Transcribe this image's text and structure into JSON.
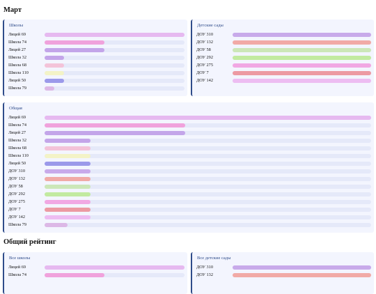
{
  "sections": {
    "march": "Март",
    "overall": "Общий рейтинг"
  },
  "chart_data": [
    {
      "type": "bar",
      "title": "Школы",
      "categories": [
        "Лицей 69",
        "Школа 74",
        "Лицей 27",
        "Школа 32",
        "Школа 68",
        "Школа 110",
        "Лицей 50",
        "Школа 79"
      ],
      "values": [
        100,
        43,
        43,
        14,
        14,
        14,
        14,
        7
      ],
      "colors": [
        "#e6b9f0",
        "#f0a2dc",
        "#c3a5e9",
        "#c3a5e9",
        "#f3c3d9",
        "#f3f3c7",
        "#9b99ea",
        "#dcb8e6"
      ],
      "xlim": [
        0,
        100
      ]
    },
    {
      "type": "bar",
      "title": "Детские сады",
      "categories": [
        "ДОУ 310",
        "ДОУ 132",
        "ДОУ 58",
        "ДОУ 292",
        "ДОУ 275",
        "ДОУ 7",
        "ДОУ 142"
      ],
      "values": [
        100,
        100,
        100,
        100,
        100,
        100,
        100
      ],
      "colors": [
        "#c8aaea",
        "#f1aaa6",
        "#cce7b8",
        "#c2eaa0",
        "#f1a8e3",
        "#ec9aa3",
        "#edbdf2"
      ],
      "xlim": [
        0,
        100
      ]
    },
    {
      "type": "bar",
      "title": "Общая",
      "categories": [
        "Лицей 69",
        "Школа 74",
        "Лицей 27",
        "Школа 32",
        "Школа 68",
        "Школа 110",
        "Лицей 50",
        "ДОУ 310",
        "ДОУ 132",
        "ДОУ 58",
        "ДОУ 292",
        "ДОУ 275",
        "ДОУ 7",
        "ДОУ 142",
        "Школа 79"
      ],
      "values": [
        100,
        43,
        43,
        14,
        14,
        14,
        14,
        14,
        14,
        14,
        14,
        14,
        14,
        14,
        7
      ],
      "colors": [
        "#e6b9f0",
        "#f0a2dc",
        "#c3a5e9",
        "#c3a5e9",
        "#f3c3d9",
        "#f3f3c7",
        "#9b99ea",
        "#c8aaea",
        "#f1aaa6",
        "#cce7b8",
        "#c2eaa0",
        "#f1a8e3",
        "#ec9aa3",
        "#edbdf2",
        "#dcb8e6"
      ],
      "xlim": [
        0,
        100
      ]
    },
    {
      "type": "bar",
      "title": "Все школы",
      "categories": [
        "Лицей 69",
        "Школа 74"
      ],
      "values": [
        100,
        43
      ],
      "colors": [
        "#e6b9f0",
        "#f0a2dc"
      ],
      "xlim": [
        0,
        100
      ]
    },
    {
      "type": "bar",
      "title": "Все детские сады",
      "categories": [
        "ДОУ 310",
        "ДОУ 132"
      ],
      "values": [
        100,
        100
      ],
      "colors": [
        "#c8aaea",
        "#f1aaa6"
      ],
      "xlim": [
        0,
        100
      ]
    }
  ]
}
